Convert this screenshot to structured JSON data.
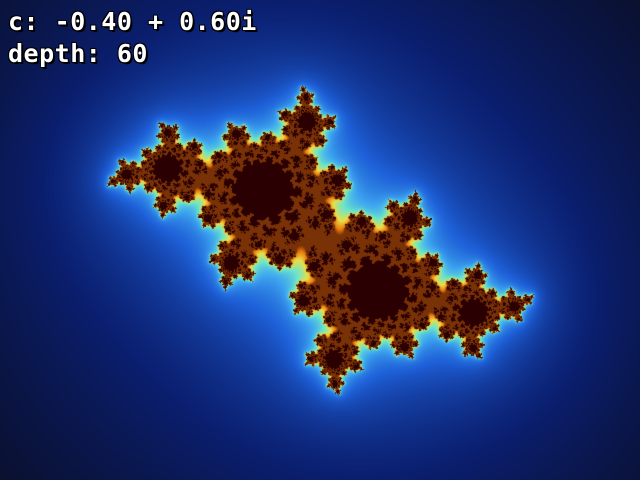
{
  "hud": {
    "c_text": "c: -0.40 + 0.60i",
    "depth_text": "depth: 60"
  },
  "fractal": {
    "type": "julia",
    "c_real": -0.4,
    "c_imag": 0.6,
    "max_iterations": 60,
    "colors": {
      "background": "#0a0f2a",
      "interior": "#2a0002",
      "deep_blue": "#0a1e6e",
      "mid_blue": "#1e60d8",
      "light_blue": "#3fa8f0",
      "cyan_green": "#6ee6c8",
      "yellow": "#e8e048",
      "orange": "#e8780c"
    }
  }
}
